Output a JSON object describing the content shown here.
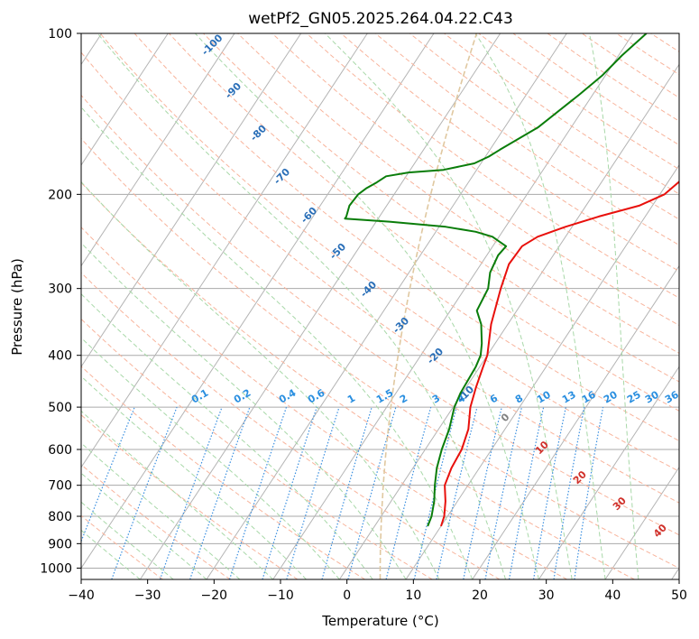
{
  "chart_data": {
    "type": "skew-t",
    "title": "wetPf2_GN05.2025.264.04.22.C43",
    "xlabel": "Temperature (°C)",
    "ylabel": "Pressure (hPa)",
    "xlim": [
      -40,
      50
    ],
    "ylim": [
      1050,
      100
    ],
    "y_scale": "log",
    "x_ticks": [
      "−40",
      "−30",
      "−20",
      "−10",
      "0",
      "10",
      "20",
      "30",
      "40",
      "50"
    ],
    "y_ticks": [
      {
        "p": 100,
        "label": "100"
      },
      {
        "p": 200,
        "label": "200"
      },
      {
        "p": 300,
        "label": "300"
      },
      {
        "p": 400,
        "label": "400"
      },
      {
        "p": 500,
        "label": "500"
      },
      {
        "p": 600,
        "label": "600"
      },
      {
        "p": 700,
        "label": "700"
      },
      {
        "p": 800,
        "label": "800"
      },
      {
        "p": 900,
        "label": "900"
      },
      {
        "p": 1000,
        "label": "1000"
      }
    ],
    "grid": true,
    "temperature_color": "#e8100c",
    "dewpoint_color": "#0a7d0a",
    "temperature": [
      [
        835,
        10
      ],
      [
        800,
        9.5
      ],
      [
        750,
        8.2
      ],
      [
        700,
        6.5
      ],
      [
        650,
        5.8
      ],
      [
        600,
        5.5
      ],
      [
        550,
        4.5
      ],
      [
        500,
        2.6
      ],
      [
        460,
        1.5
      ],
      [
        420,
        0.5
      ],
      [
        400,
        0
      ],
      [
        350,
        -2.5
      ],
      [
        300,
        -4.6
      ],
      [
        270,
        -5.8
      ],
      [
        250,
        -5.6
      ],
      [
        240,
        -4.2
      ],
      [
        230,
        -1
      ],
      [
        220,
        3
      ],
      [
        210,
        8
      ],
      [
        200,
        10.7
      ],
      [
        190,
        11.6
      ],
      [
        180,
        12.5
      ],
      [
        170,
        13.8
      ],
      [
        160,
        15.5
      ],
      [
        150,
        17.5
      ],
      [
        140,
        19.8
      ],
      [
        130,
        22.5
      ],
      [
        120,
        25.5
      ],
      [
        110,
        28.5
      ],
      [
        100,
        31
      ]
    ],
    "dewpoint": [
      [
        835,
        8
      ],
      [
        800,
        7.6
      ],
      [
        750,
        6.5
      ],
      [
        700,
        5
      ],
      [
        650,
        3.6
      ],
      [
        600,
        2.5
      ],
      [
        550,
        1.6
      ],
      [
        500,
        0.2
      ],
      [
        470,
        -0.3
      ],
      [
        420,
        -0.6
      ],
      [
        400,
        -1
      ],
      [
        380,
        -2
      ],
      [
        350,
        -4
      ],
      [
        330,
        -6
      ],
      [
        300,
        -6.5
      ],
      [
        280,
        -7.8
      ],
      [
        260,
        -8.3
      ],
      [
        250,
        -8
      ],
      [
        245,
        -9.5
      ],
      [
        240,
        -11
      ],
      [
        235,
        -14
      ],
      [
        230,
        -19
      ],
      [
        225,
        -28
      ],
      [
        222,
        -35
      ],
      [
        220,
        -35
      ],
      [
        210,
        -35.6
      ],
      [
        200,
        -35.4
      ],
      [
        195,
        -34.8
      ],
      [
        190,
        -33.8
      ],
      [
        185,
        -33
      ],
      [
        182,
        -30
      ],
      [
        180,
        -25
      ],
      [
        175,
        -21
      ],
      [
        170,
        -19.5
      ],
      [
        165,
        -18.5
      ],
      [
        150,
        -15
      ],
      [
        130,
        -12
      ],
      [
        120,
        -10.5
      ],
      [
        110,
        -9.5
      ],
      [
        100,
        -8
      ]
    ],
    "mixing_ratio_labels": [
      "0.1",
      "0.2",
      "0.4",
      "0.6",
      "1",
      "1.5",
      "2",
      "3",
      "4",
      "6",
      "8",
      "10",
      "13",
      "16",
      "20",
      "25",
      "30",
      "36"
    ],
    "dry_adiabat_labels": [
      "-100",
      "-90",
      "-80",
      "-70",
      "-60",
      "-50",
      "-40",
      "-30",
      "-20",
      "-10"
    ],
    "moist_adiabat_labels": [
      "0",
      "10",
      "20",
      "30",
      "40"
    ],
    "colors": {
      "isotherm": "#b4b4b4",
      "isobar": "#aaaaaa",
      "dry_adiabat": "#f8b49c",
      "moist_adiabat": "#a8d8a8",
      "mixing_ratio": "#3a8fe0",
      "extra_curve": "#e0c8a0"
    }
  }
}
